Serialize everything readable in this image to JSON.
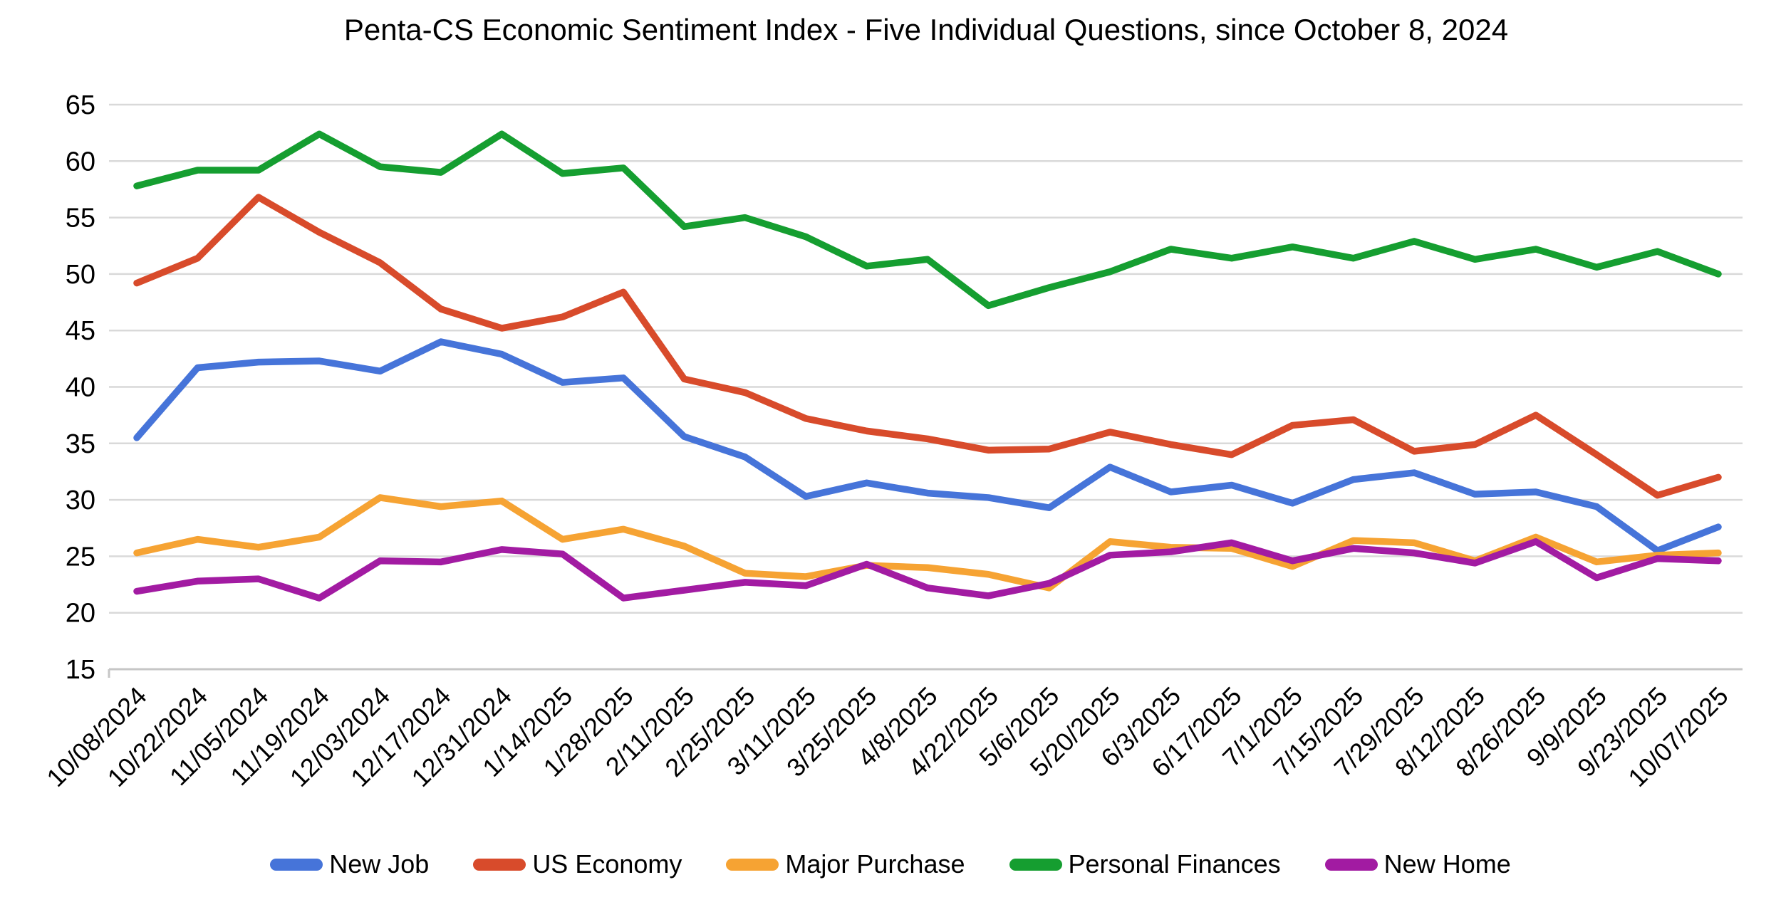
{
  "page": {
    "background": "#ffffff"
  },
  "chart_data": {
    "type": "line",
    "title": "Penta-CS Economic Sentiment Index - Five Individual Questions, since October 8, 2024",
    "categories": [
      "10/08/2024",
      "10/22/2024",
      "11/05/2024",
      "11/19/2024",
      "12/03/2024",
      "12/17/2024",
      "12/31/2024",
      "1/14/2025",
      "1/28/2025",
      "2/11/2025",
      "2/25/2025",
      "3/11/2025",
      "3/25/2025",
      "4/8/2025",
      "4/22/2025",
      "5/6/2025",
      "5/20/2025",
      "6/3/2025",
      "6/17/2025",
      "7/1/2025",
      "7/15/2025",
      "7/29/2025",
      "8/12/2025",
      "8/26/2025",
      "9/9/2025",
      "9/23/2025",
      "10/07/2025"
    ],
    "series": [
      {
        "name": "New Job",
        "color": "#4674d9",
        "values": [
          35.5,
          41.7,
          42.2,
          42.3,
          41.4,
          44.0,
          42.9,
          40.4,
          40.8,
          35.6,
          33.8,
          30.3,
          31.5,
          30.6,
          30.2,
          29.3,
          32.9,
          30.7,
          31.3,
          29.7,
          31.8,
          32.4,
          30.5,
          30.7,
          29.4,
          25.5,
          27.6
        ]
      },
      {
        "name": "US Economy",
        "color": "#d84b2b",
        "values": [
          49.2,
          51.4,
          56.8,
          53.7,
          51.0,
          46.9,
          45.2,
          46.2,
          48.4,
          40.7,
          39.5,
          37.2,
          36.1,
          35.4,
          34.4,
          34.5,
          36.0,
          34.9,
          34.0,
          36.6,
          37.1,
          34.3,
          34.9,
          37.5,
          34.0,
          30.4,
          32.0
        ]
      },
      {
        "name": "Major Purchase",
        "color": "#f6a333",
        "values": [
          25.3,
          26.5,
          25.8,
          26.7,
          30.2,
          29.4,
          29.9,
          26.5,
          27.4,
          25.9,
          23.5,
          23.2,
          24.2,
          24.0,
          23.4,
          22.2,
          26.3,
          25.8,
          25.7,
          24.1,
          26.4,
          26.2,
          24.6,
          26.7,
          24.5,
          25.1,
          25.3
        ]
      },
      {
        "name": "Personal Finances",
        "color": "#159e30",
        "values": [
          57.8,
          59.2,
          59.2,
          62.4,
          59.5,
          59.0,
          62.4,
          58.9,
          59.4,
          54.2,
          55.0,
          53.3,
          50.7,
          51.3,
          47.2,
          48.8,
          50.2,
          52.2,
          51.4,
          52.4,
          51.4,
          52.9,
          51.3,
          52.2,
          50.6,
          52.0,
          50.0
        ]
      },
      {
        "name": "New Home",
        "color": "#a21ba2",
        "values": [
          21.9,
          22.8,
          23.0,
          21.3,
          24.6,
          24.5,
          25.6,
          25.2,
          21.3,
          22.0,
          22.7,
          22.4,
          24.3,
          22.2,
          21.5,
          22.6,
          25.1,
          25.4,
          26.2,
          24.6,
          25.7,
          25.3,
          24.4,
          26.3,
          23.1,
          24.8,
          24.6
        ]
      }
    ],
    "ylim": [
      15,
      65
    ],
    "y_ticks": [
      15,
      20,
      25,
      30,
      35,
      40,
      45,
      50,
      55,
      60,
      65
    ],
    "xlabel": "",
    "ylabel": "",
    "grid": true,
    "legend_position": "bottom",
    "grid_color": "#d9d9d9",
    "axis_line_color": "#c6c6c6",
    "text_color": "#000000"
  }
}
